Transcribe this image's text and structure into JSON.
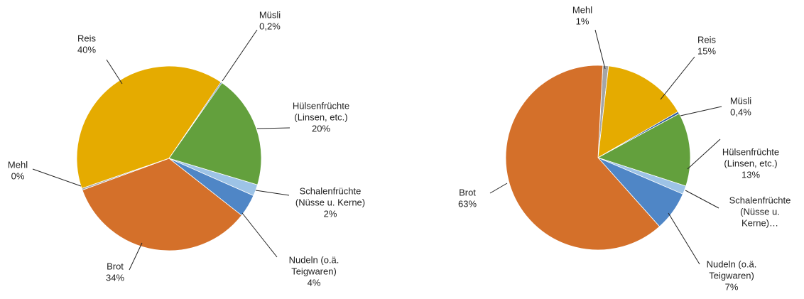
{
  "chart_data": [
    {
      "type": "pie",
      "categories": [
        [
          "Reis"
        ],
        [
          "Müsli"
        ],
        [
          "Hülsenfrüchte",
          "(Linsen, etc.)"
        ],
        [
          "Schalenfrüchte",
          "(Nüsse u. Kerne)"
        ],
        [
          "Nudeln (o.ä.",
          "Teigwaren)"
        ],
        [
          "Brot"
        ],
        [
          "Mehl"
        ]
      ],
      "values": [
        40,
        0.2,
        20,
        2,
        4,
        34,
        0.3
      ],
      "value_labels": [
        "40%",
        "0,2%",
        "20%",
        "2%",
        "4%",
        "34%",
        "0%"
      ],
      "colors": [
        "#e5ab00",
        "#2e5d9e",
        "#63a03d",
        "#9dc3e6",
        "#4f86c6",
        "#d4702a",
        "#a5a5a5"
      ]
    },
    {
      "type": "pie",
      "categories": [
        [
          "Mehl"
        ],
        [
          "Reis"
        ],
        [
          "Müsli"
        ],
        [
          "Hülsenfrüchte",
          "(Linsen, etc.)"
        ],
        [
          "Schalenfrüchte",
          "(Nüsse u.",
          "Kerne)…"
        ],
        [
          "Nudeln (o.ä.",
          "Teigwaren)"
        ],
        [
          "Brot"
        ]
      ],
      "values": [
        1,
        15,
        0.4,
        13,
        1.5,
        7,
        63
      ],
      "value_labels": [
        "1%",
        "15%",
        "0,4%",
        "13%",
        null,
        "7%",
        "63%"
      ],
      "colors": [
        "#a5a5a5",
        "#e5ab00",
        "#2e5d9e",
        "#63a03d",
        "#9dc3e6",
        "#4f86c6",
        "#d4702a"
      ]
    }
  ]
}
